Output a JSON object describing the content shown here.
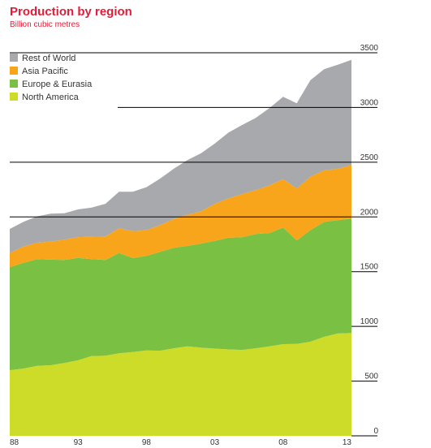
{
  "chart_data": {
    "type": "area",
    "stacked": true,
    "title": "Production by region",
    "subtitle": "Billion cubic metres",
    "x": [
      1988,
      1989,
      1990,
      1991,
      1992,
      1993,
      1994,
      1995,
      1996,
      1997,
      1998,
      1999,
      2000,
      2001,
      2002,
      2003,
      2004,
      2005,
      2006,
      2007,
      2008,
      2009,
      2010,
      2011,
      2012,
      2013
    ],
    "x_tick_labels": [
      "88",
      "93",
      "98",
      "03",
      "08",
      "13"
    ],
    "x_tick_values": [
      1988,
      1993,
      1998,
      2003,
      2008,
      2013
    ],
    "xlim": [
      1988,
      2013
    ],
    "ylim": [
      0,
      3500
    ],
    "y_ticks": [
      0,
      500,
      1000,
      1500,
      2000,
      2500,
      3000,
      3500
    ],
    "grid": true,
    "legend_position": "top-left",
    "series": [
      {
        "name": "North America",
        "color": "#cddc28",
        "values": [
          600,
          615,
          640,
          645,
          665,
          690,
          730,
          732,
          755,
          765,
          780,
          778,
          800,
          818,
          805,
          797,
          790,
          785,
          800,
          818,
          838,
          840,
          860,
          905,
          935,
          940
        ]
      },
      {
        "name": "Europe & Eurasia",
        "color": "#7ac143",
        "values": [
          940,
          965,
          975,
          965,
          942,
          936,
          885,
          875,
          915,
          860,
          864,
          902,
          918,
          917,
          952,
          985,
          1020,
          1030,
          1045,
          1035,
          1065,
          945,
          1020,
          1050,
          1035,
          1045
        ]
      },
      {
        "name": "Asia Pacific",
        "color": "#f9a51b",
        "values": [
          130,
          150,
          150,
          165,
          185,
          190,
          205,
          215,
          225,
          245,
          235,
          245,
          265,
          285,
          295,
          338,
          360,
          395,
          400,
          437,
          442,
          475,
          490,
          470,
          470,
          490
        ]
      },
      {
        "name": "Rest of World",
        "color": "#a7a9ac",
        "values": [
          220,
          225,
          240,
          255,
          242,
          253,
          266,
          298,
          335,
          360,
          393,
          425,
          457,
          500,
          530,
          550,
          600,
          630,
          660,
          705,
          752,
          778,
          880,
          925,
          950,
          960
        ]
      }
    ]
  }
}
